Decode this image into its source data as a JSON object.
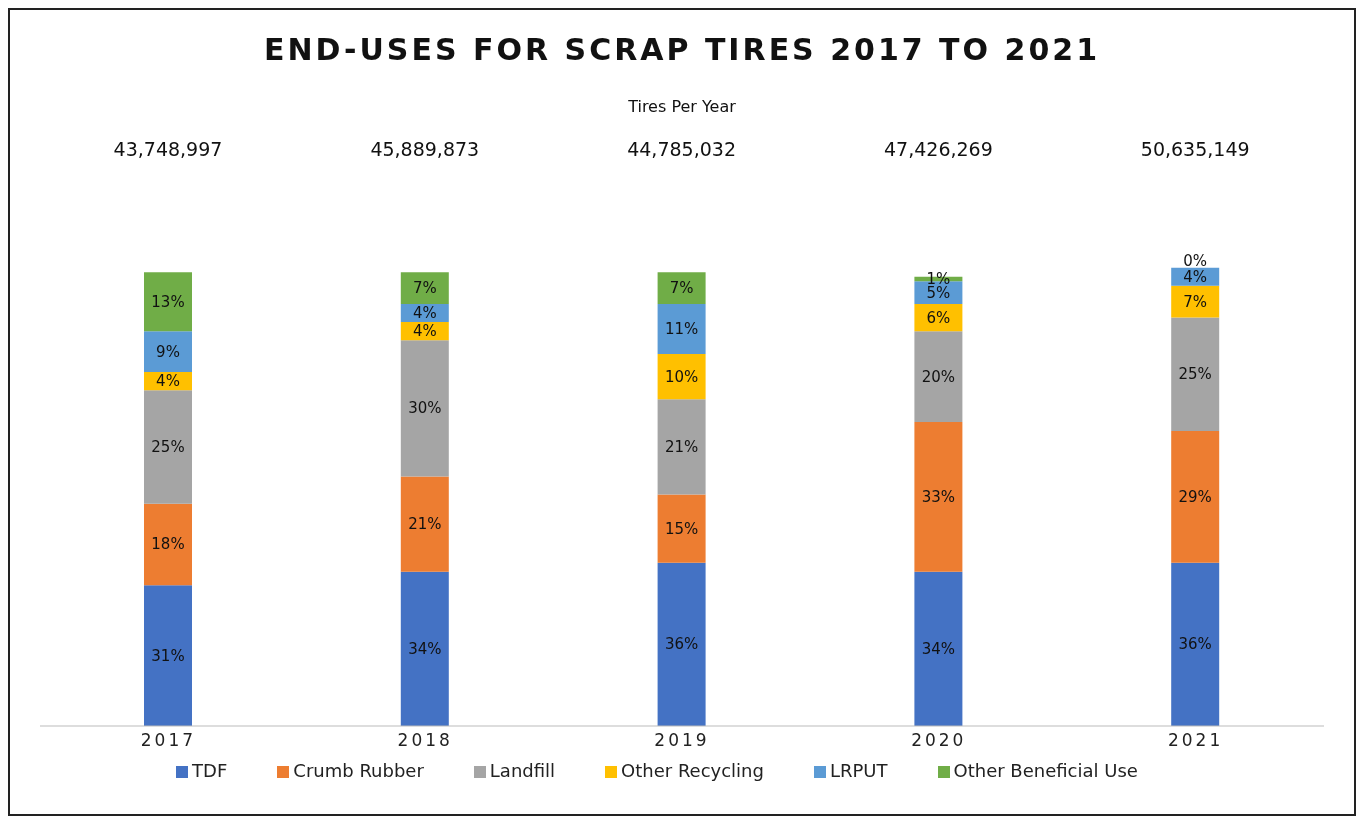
{
  "chart_data": {
    "type": "bar",
    "title": "END-USES FOR SCRAP TIRES 2017 TO 2021",
    "subtitle": "Tires Per Year",
    "stacked": true,
    "categories": [
      "2017",
      "2018",
      "2019",
      "2020",
      "2021"
    ],
    "series": [
      {
        "name": "TDF",
        "color": "#4472c4",
        "values": [
          31,
          34,
          36,
          34,
          36
        ],
        "value_labels": [
          "31%",
          "34%",
          "36%",
          "34%",
          "36%"
        ]
      },
      {
        "name": "Crumb Rubber",
        "color": "#ed7d31",
        "values": [
          18,
          21,
          15,
          33,
          29
        ],
        "value_labels": [
          "18%",
          "21%",
          "15%",
          "33%",
          "29%"
        ]
      },
      {
        "name": "Landfill",
        "color": "#a5a5a5",
        "values": [
          25,
          30,
          21,
          20,
          25
        ],
        "value_labels": [
          "25%",
          "30%",
          "21%",
          "20%",
          "25%"
        ]
      },
      {
        "name": "Other Recycling",
        "color": "#ffc000",
        "values": [
          4,
          4,
          10,
          6,
          7
        ],
        "value_labels": [
          "4%",
          "4%",
          "10%",
          "6%",
          "7%"
        ]
      },
      {
        "name": "LRPUT",
        "color": "#5b9bd5",
        "values": [
          9,
          4,
          11,
          5,
          4
        ],
        "value_labels": [
          "9%",
          "4%",
          "11%",
          "5%",
          "4%"
        ]
      },
      {
        "name": "Other Beneficial Use",
        "color": "#70ad47",
        "values": [
          13,
          7,
          7,
          1,
          0
        ],
        "value_labels": [
          "13%",
          "7%",
          "7%",
          "1%",
          "0%"
        ]
      }
    ],
    "annotations": [
      "43,748,997",
      "45,889,873",
      "44,785,032",
      "47,426,269",
      "50,635,149"
    ],
    "legend": "bottom",
    "grid": false
  }
}
